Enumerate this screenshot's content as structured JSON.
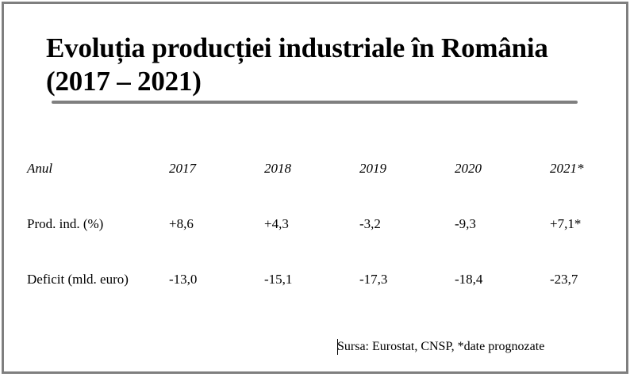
{
  "title": "Evoluția producției industriale în România (2017 – 2021)",
  "table": {
    "header": {
      "label": "Anul",
      "years": [
        "2017",
        "2018",
        "2019",
        "2020",
        "2021*"
      ]
    },
    "rows": [
      {
        "label": "Prod. ind. (%)",
        "values": [
          "+8,6",
          "+4,3",
          "-3,2",
          "-9,3",
          "+7,1*"
        ]
      },
      {
        "label": "Deficit (mld. euro)",
        "values": [
          "-13,0",
          "-15,1",
          "-17,3",
          "-18,4",
          "-23,7"
        ]
      }
    ]
  },
  "source": "Sursa: Eurostat, CNSP, *date prognozate",
  "colors": {
    "border": "#7f7f7f",
    "rule": "#7f7f7f",
    "text": "#000000"
  }
}
